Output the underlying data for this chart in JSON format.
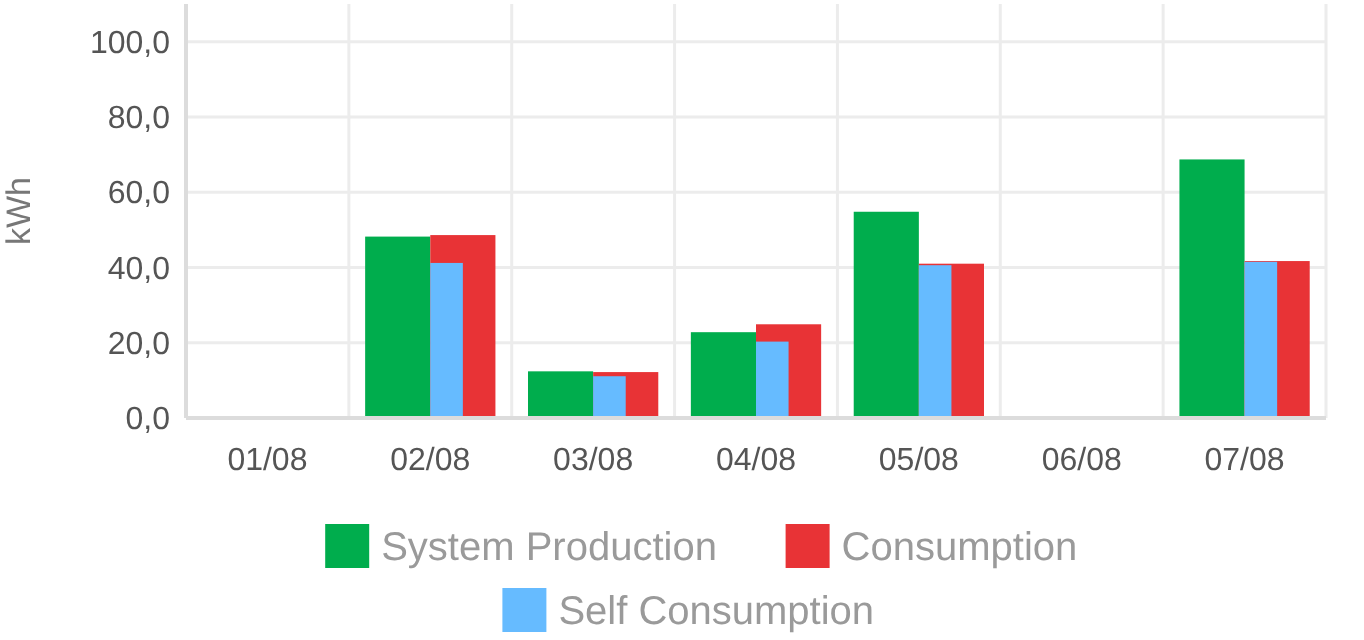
{
  "chart_data": {
    "type": "bar",
    "ylabel": "kWh",
    "categories": [
      "01/08",
      "02/08",
      "03/08",
      "04/08",
      "05/08",
      "06/08",
      "07/08"
    ],
    "series": [
      {
        "name": "System Production",
        "color": "#00ad4d",
        "values": [
          0,
          48.2,
          12.4,
          22.8,
          54.8,
          0,
          68.7
        ]
      },
      {
        "name": "Consumption",
        "color": "#e83336",
        "values": [
          0,
          48.6,
          12.2,
          24.9,
          41.0,
          0,
          41.7
        ]
      },
      {
        "name": "Self Consumption",
        "color": "#66bbff",
        "values": [
          0,
          41.2,
          11.1,
          20.3,
          40.6,
          0,
          41.5
        ]
      }
    ],
    "ylim": [
      0,
      110
    ],
    "yticks": [
      {
        "value": 0,
        "label": "0,0"
      },
      {
        "value": 20,
        "label": "20,0"
      },
      {
        "value": 40,
        "label": "40,0"
      },
      {
        "value": 60,
        "label": "60,0"
      },
      {
        "value": 80,
        "label": "80,0"
      },
      {
        "value": 100,
        "label": "100,0"
      }
    ],
    "grid": true,
    "legend": "bottom"
  }
}
